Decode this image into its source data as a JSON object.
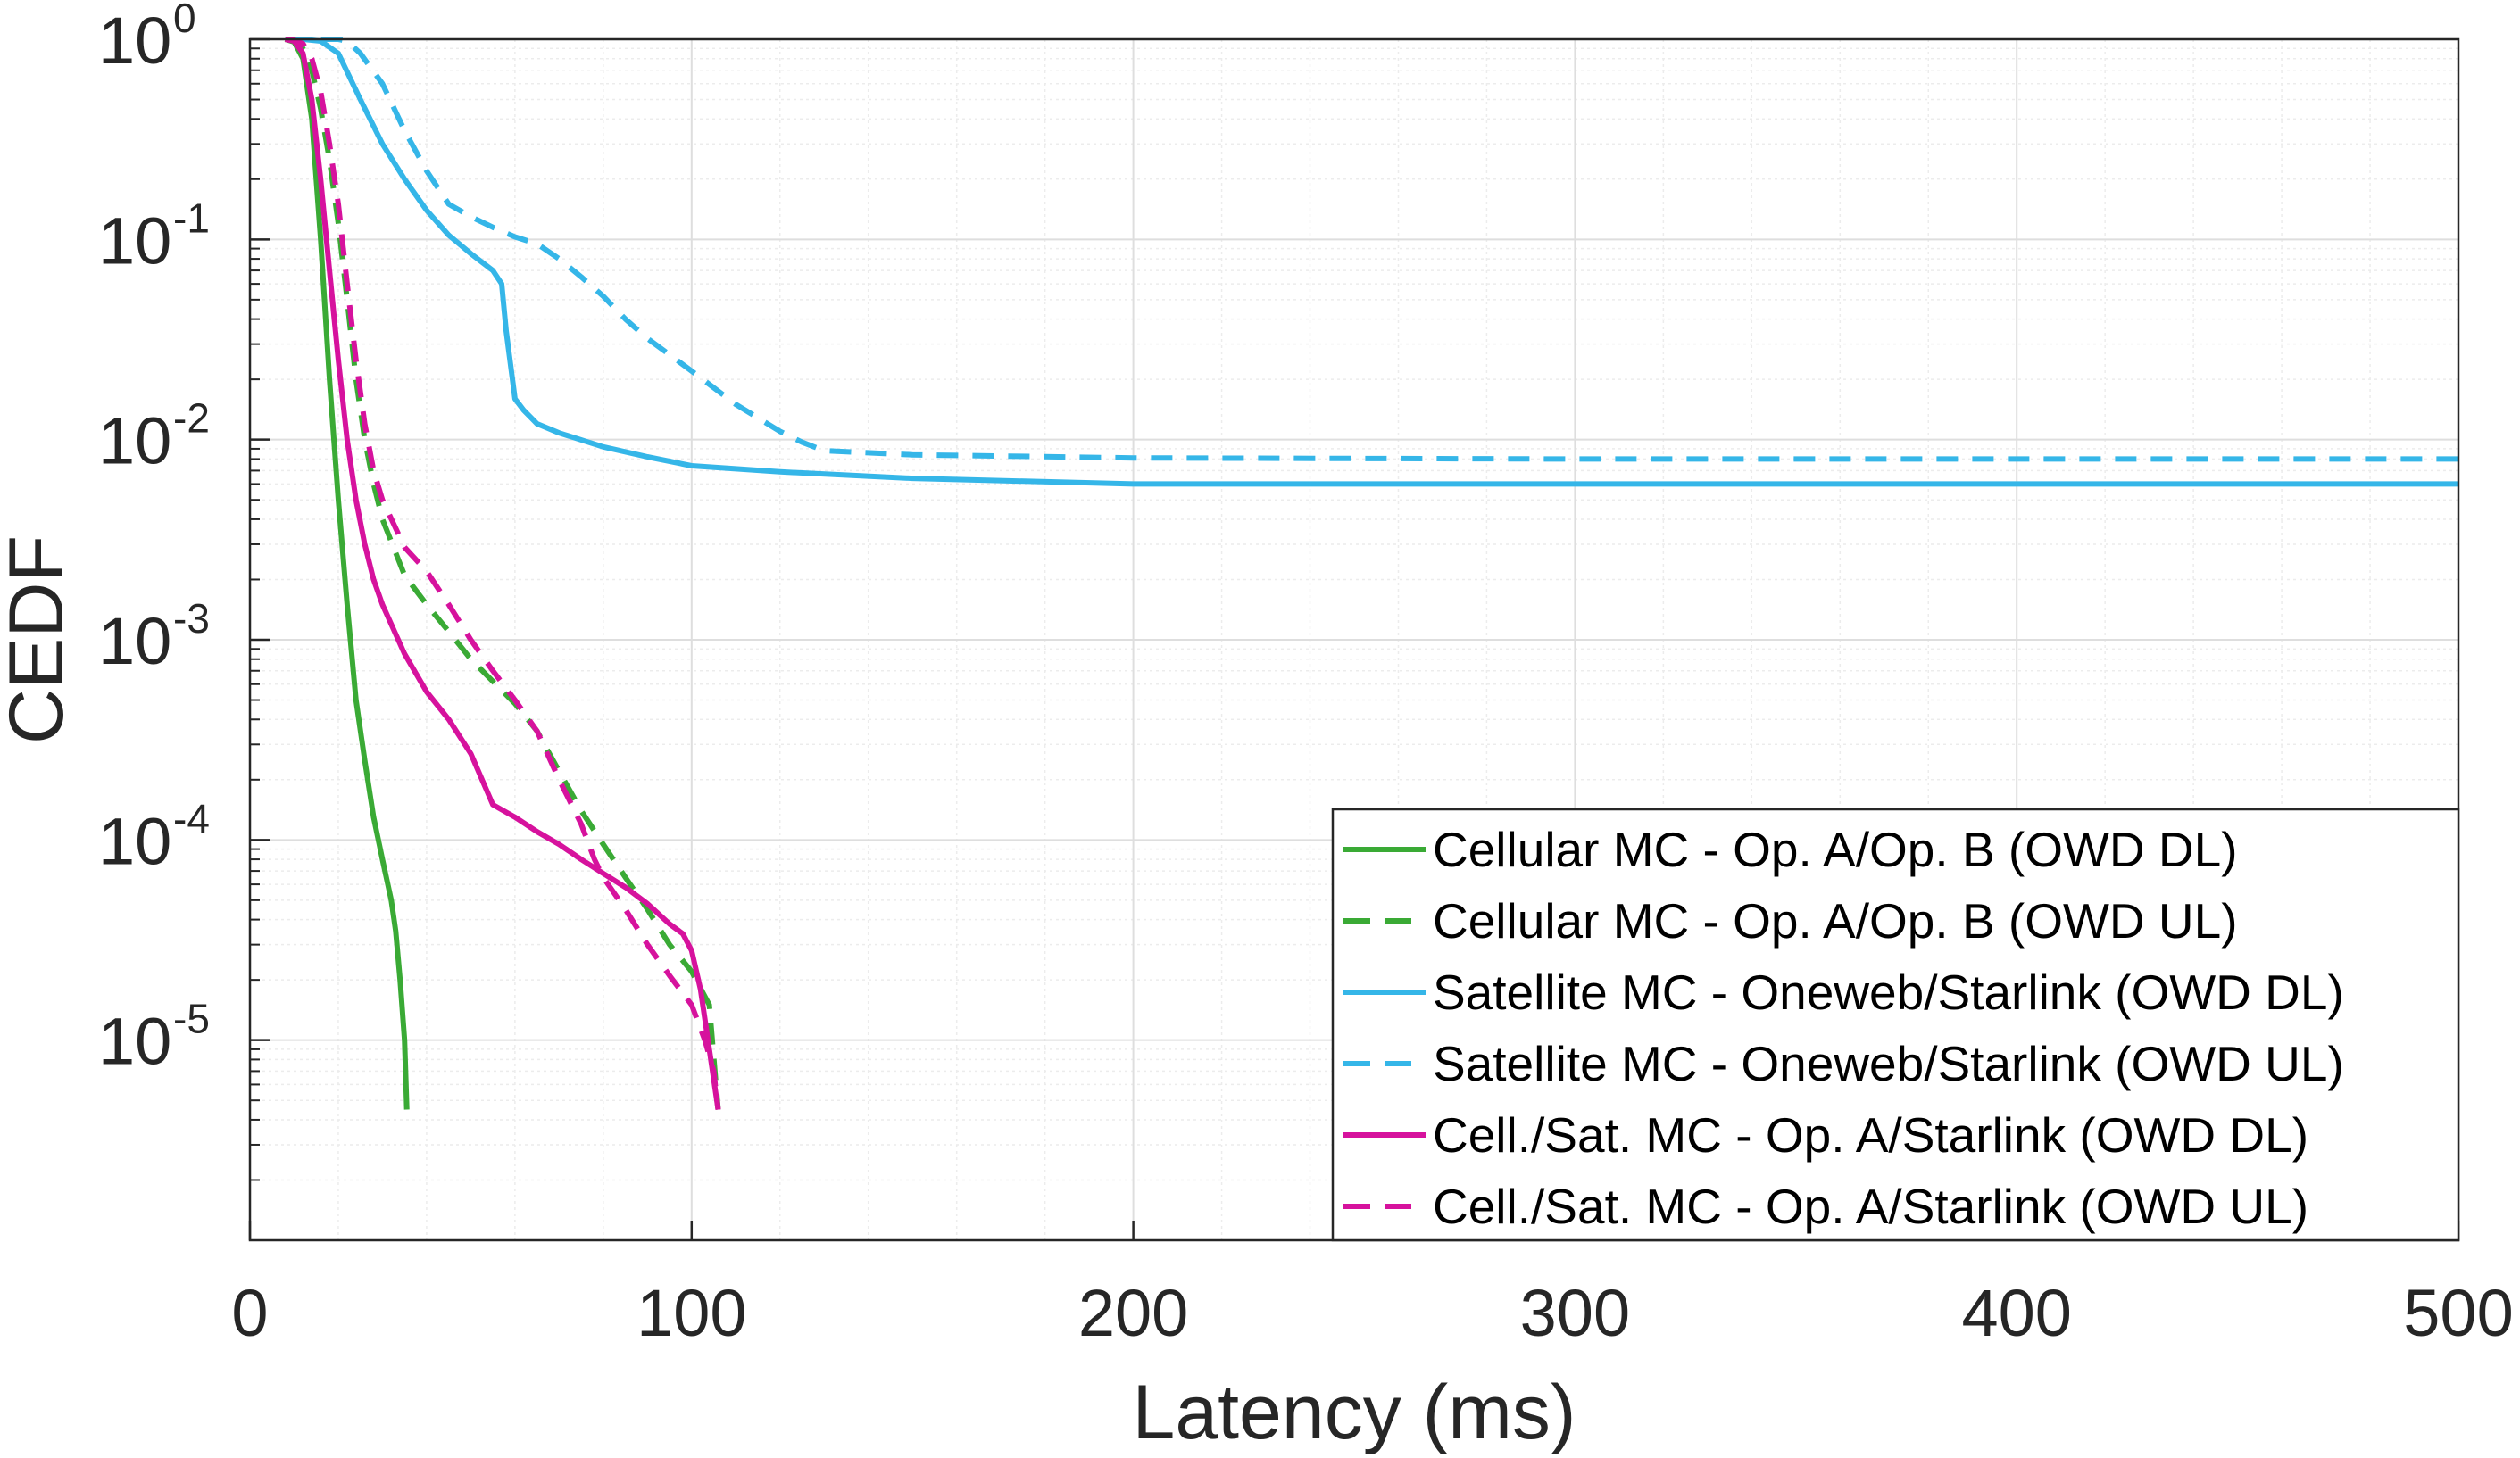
{
  "chart_data": {
    "type": "line",
    "title": "",
    "xlabel": "Latency (ms)",
    "ylabel": "CEDF",
    "xscale": "linear",
    "yscale": "log",
    "xlim": [
      0,
      500
    ],
    "ylim": [
      1e-06,
      1
    ],
    "x_ticks": [
      0,
      100,
      200,
      300,
      400,
      500
    ],
    "x_tick_labels": [
      "0",
      "100",
      "200",
      "300",
      "400",
      "500"
    ],
    "y_ticks": [
      1,
      0.1,
      0.01,
      0.001,
      0.0001,
      1e-05
    ],
    "y_tick_labels": [
      {
        "base": "10",
        "exp": "0"
      },
      {
        "base": "10",
        "exp": "-1"
      },
      {
        "base": "10",
        "exp": "-2"
      },
      {
        "base": "10",
        "exp": "-3"
      },
      {
        "base": "10",
        "exp": "-4"
      },
      {
        "base": "10",
        "exp": "-5"
      }
    ],
    "grid": true,
    "legend_position": "bottom-right",
    "series": [
      {
        "name": "Cellular MC - Op. A/Op. B (OWD DL)",
        "color": "#3aaa35",
        "style": "solid",
        "x": [
          8,
          10,
          12,
          14,
          16,
          18,
          20,
          22,
          24,
          26,
          28,
          30,
          32,
          33,
          34,
          35,
          35.5
        ],
        "y": [
          1,
          0.97,
          0.8,
          0.4,
          0.1,
          0.02,
          0.005,
          0.0015,
          0.0005,
          0.00025,
          0.00013,
          8e-05,
          5e-05,
          3.5e-05,
          2e-05,
          1e-05,
          4.5e-06
        ]
      },
      {
        "name": "Cellular MC - Op. A/Op. B (OWD UL)",
        "color": "#3aaa35",
        "style": "dashed",
        "x": [
          8,
          10,
          12,
          14,
          16,
          18,
          20,
          22,
          24,
          26,
          28,
          30,
          35,
          40,
          45,
          50,
          55,
          60,
          65,
          70,
          75,
          80,
          85,
          90,
          95,
          100,
          104,
          106
        ],
        "y": [
          1,
          0.98,
          0.9,
          0.7,
          0.45,
          0.25,
          0.12,
          0.05,
          0.02,
          0.01,
          0.006,
          0.004,
          0.0021,
          0.0015,
          0.0011,
          0.0008,
          0.00062,
          0.00048,
          0.00035,
          0.00022,
          0.00014,
          9.5e-05,
          6.5e-05,
          4.5e-05,
          3e-05,
          2.2e-05,
          1.5e-05,
          4.5e-06
        ]
      },
      {
        "name": "Satellite MC - Oneweb/Starlink (OWD DL)",
        "color": "#35b6e8",
        "style": "solid",
        "x": [
          8,
          12,
          16,
          20,
          25,
          30,
          35,
          40,
          45,
          50,
          55,
          57,
          58,
          60,
          62,
          65,
          70,
          80,
          90,
          100,
          120,
          150,
          200,
          300,
          400,
          500
        ],
        "y": [
          1,
          1,
          0.98,
          0.85,
          0.5,
          0.3,
          0.2,
          0.14,
          0.105,
          0.085,
          0.07,
          0.06,
          0.035,
          0.016,
          0.014,
          0.012,
          0.0108,
          0.0092,
          0.0082,
          0.0074,
          0.0069,
          0.0064,
          0.006,
          0.006,
          0.006,
          0.006
        ]
      },
      {
        "name": "Satellite MC - Oneweb/Starlink (OWD UL)",
        "color": "#35b6e8",
        "style": "dashed",
        "x": [
          8,
          12,
          16,
          20,
          22,
          25,
          30,
          35,
          40,
          45,
          50,
          55,
          60,
          65,
          70,
          75,
          80,
          85,
          90,
          100,
          110,
          120,
          125,
          130,
          150,
          200,
          300,
          400,
          500
        ],
        "y": [
          1,
          1,
          1,
          1,
          0.98,
          0.85,
          0.6,
          0.35,
          0.22,
          0.15,
          0.13,
          0.115,
          0.103,
          0.095,
          0.08,
          0.065,
          0.052,
          0.04,
          0.032,
          0.022,
          0.015,
          0.011,
          0.0097,
          0.0088,
          0.0084,
          0.0081,
          0.008,
          0.008,
          0.008
        ]
      },
      {
        "name": "Cell./Sat. MC - Op. A/Starlink (OWD DL)",
        "color": "#d6129d",
        "style": "solid",
        "x": [
          8,
          10,
          12,
          14,
          16,
          18,
          20,
          22,
          24,
          26,
          28,
          30,
          35,
          40,
          45,
          50,
          55,
          60,
          65,
          70,
          75,
          80,
          85,
          90,
          95,
          98,
          100,
          102,
          104,
          106
        ],
        "y": [
          1,
          0.98,
          0.85,
          0.5,
          0.2,
          0.07,
          0.025,
          0.01,
          0.005,
          0.003,
          0.002,
          0.0015,
          0.00085,
          0.00055,
          0.0004,
          0.00027,
          0.00015,
          0.00013,
          0.00011,
          9.5e-05,
          8e-05,
          6.8e-05,
          5.8e-05,
          4.8e-05,
          3.8e-05,
          3.4e-05,
          2.8e-05,
          1.8e-05,
          9e-06,
          4.5e-06
        ]
      },
      {
        "name": "Cell./Sat. MC - Op. A/Starlink (OWD UL)",
        "color": "#d6129d",
        "style": "dashed",
        "x": [
          8,
          10,
          12,
          14,
          16,
          18,
          20,
          22,
          24,
          26,
          28,
          30,
          35,
          40,
          45,
          50,
          55,
          60,
          65,
          70,
          75,
          78,
          80,
          85,
          90,
          95,
          100,
          103,
          105,
          106
        ],
        "y": [
          1,
          0.99,
          0.95,
          0.8,
          0.55,
          0.3,
          0.15,
          0.06,
          0.025,
          0.012,
          0.007,
          0.005,
          0.0029,
          0.0022,
          0.0015,
          0.001,
          0.0007,
          0.0005,
          0.00035,
          0.0002,
          0.00012,
          8e-05,
          6.5e-05,
          4.5e-05,
          3e-05,
          2.1e-05,
          1.5e-05,
          1e-05,
          7e-06,
          4.5e-06
        ]
      }
    ]
  }
}
